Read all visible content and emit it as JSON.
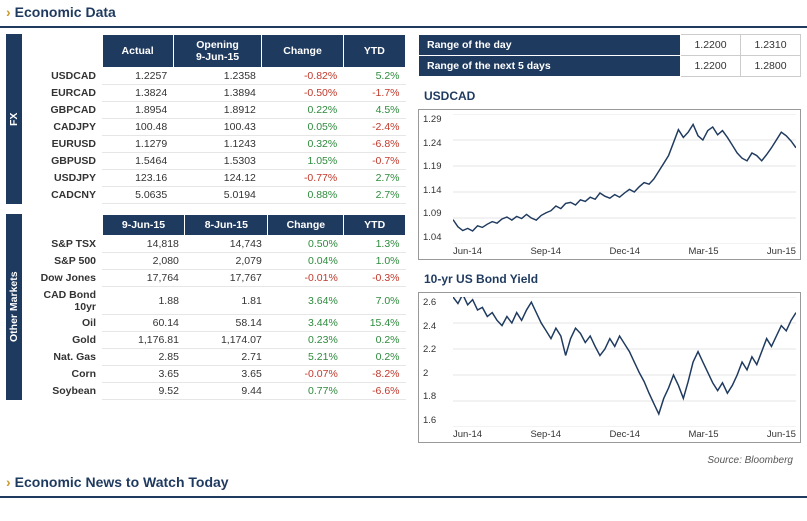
{
  "colors": {
    "navy": "#1f3a5f",
    "gold": "#c99a2e",
    "pos": "#2e8b3d",
    "neg": "#c0392b",
    "grid": "#cccccc",
    "line": "#1f3a5f"
  },
  "section1_title": "Economic Data",
  "section2_title": "Economic News to Watch Today",
  "fx": {
    "tab_label": "FX",
    "headers": [
      "Actual",
      "Opening\n9-Jun-15",
      "Change",
      "YTD"
    ],
    "rows": [
      {
        "label": "USDCAD",
        "actual": "1.2257",
        "open": "1.2358",
        "chg": "-0.82%",
        "chg_sign": -1,
        "ytd": "5.2%",
        "ytd_sign": 1
      },
      {
        "label": "EURCAD",
        "actual": "1.3824",
        "open": "1.3894",
        "chg": "-0.50%",
        "chg_sign": -1,
        "ytd": "-1.7%",
        "ytd_sign": -1
      },
      {
        "label": "GBPCAD",
        "actual": "1.8954",
        "open": "1.8912",
        "chg": "0.22%",
        "chg_sign": 1,
        "ytd": "4.5%",
        "ytd_sign": 1
      },
      {
        "label": "CADJPY",
        "actual": "100.48",
        "open": "100.43",
        "chg": "0.05%",
        "chg_sign": 1,
        "ytd": "-2.4%",
        "ytd_sign": -1
      },
      {
        "label": "EURUSD",
        "actual": "1.1279",
        "open": "1.1243",
        "chg": "0.32%",
        "chg_sign": 1,
        "ytd": "-6.8%",
        "ytd_sign": -1
      },
      {
        "label": "GBPUSD",
        "actual": "1.5464",
        "open": "1.5303",
        "chg": "1.05%",
        "chg_sign": 1,
        "ytd": "-0.7%",
        "ytd_sign": -1
      },
      {
        "label": "USDJPY",
        "actual": "123.16",
        "open": "124.12",
        "chg": "-0.77%",
        "chg_sign": -1,
        "ytd": "2.7%",
        "ytd_sign": 1
      },
      {
        "label": "CADCNY",
        "actual": "5.0635",
        "open": "5.0194",
        "chg": "0.88%",
        "chg_sign": 1,
        "ytd": "2.7%",
        "ytd_sign": 1
      }
    ]
  },
  "other": {
    "tab_label": "Other Markets",
    "headers": [
      "9-Jun-15",
      "8-Jun-15",
      "Change",
      "YTD"
    ],
    "rows": [
      {
        "label": "S&P TSX",
        "actual": "14,818",
        "open": "14,743",
        "chg": "0.50%",
        "chg_sign": 1,
        "ytd": "1.3%",
        "ytd_sign": 1
      },
      {
        "label": "S&P 500",
        "actual": "2,080",
        "open": "2,079",
        "chg": "0.04%",
        "chg_sign": 1,
        "ytd": "1.0%",
        "ytd_sign": 1
      },
      {
        "label": "Dow Jones",
        "actual": "17,764",
        "open": "17,767",
        "chg": "-0.01%",
        "chg_sign": -1,
        "ytd": "-0.3%",
        "ytd_sign": -1
      },
      {
        "label": "CAD Bond 10yr",
        "actual": "1.88",
        "open": "1.81",
        "chg": "3.64%",
        "chg_sign": 1,
        "ytd": "7.0%",
        "ytd_sign": 1
      },
      {
        "label": "Oil",
        "actual": "60.14",
        "open": "58.14",
        "chg": "3.44%",
        "chg_sign": 1,
        "ytd": "15.4%",
        "ytd_sign": 1
      },
      {
        "label": "Gold",
        "actual": "1,176.81",
        "open": "1,174.07",
        "chg": "0.23%",
        "chg_sign": 1,
        "ytd": "0.2%",
        "ytd_sign": 1
      },
      {
        "label": "Nat. Gas",
        "actual": "2.85",
        "open": "2.71",
        "chg": "5.21%",
        "chg_sign": 1,
        "ytd": "0.2%",
        "ytd_sign": 1
      },
      {
        "label": "Corn",
        "actual": "3.65",
        "open": "3.65",
        "chg": "-0.07%",
        "chg_sign": -1,
        "ytd": "-8.2%",
        "ytd_sign": -1
      },
      {
        "label": "Soybean",
        "actual": "9.52",
        "open": "9.44",
        "chg": "0.77%",
        "chg_sign": 1,
        "ytd": "-6.6%",
        "ytd_sign": -1
      }
    ]
  },
  "ranges": {
    "rows": [
      {
        "label": "Range of the day",
        "low": "1.2200",
        "high": "1.2310"
      },
      {
        "label": "Range of the next 5 days",
        "low": "1.2200",
        "high": "1.2800"
      }
    ]
  },
  "chart1": {
    "title": "USDCAD",
    "type": "line",
    "ylim": [
      1.04,
      1.29
    ],
    "yticks": [
      1.29,
      1.24,
      1.19,
      1.14,
      1.09,
      1.04
    ],
    "xticks": [
      "Jun-14",
      "Sep-14",
      "Dec-14",
      "Mar-15",
      "Jun-15"
    ],
    "line_color": "#1f3a5f",
    "line_width": 1.4,
    "background": "#ffffff",
    "grid_color": "#cccccc",
    "series": [
      1.087,
      1.073,
      1.066,
      1.07,
      1.065,
      1.075,
      1.072,
      1.078,
      1.083,
      1.08,
      1.088,
      1.092,
      1.086,
      1.093,
      1.089,
      1.097,
      1.09,
      1.086,
      1.095,
      1.1,
      1.104,
      1.113,
      1.108,
      1.118,
      1.12,
      1.115,
      1.125,
      1.122,
      1.13,
      1.126,
      1.138,
      1.132,
      1.128,
      1.135,
      1.13,
      1.138,
      1.145,
      1.14,
      1.15,
      1.158,
      1.155,
      1.165,
      1.18,
      1.195,
      1.21,
      1.235,
      1.26,
      1.245,
      1.255,
      1.27,
      1.248,
      1.24,
      1.258,
      1.265,
      1.25,
      1.258,
      1.245,
      1.23,
      1.215,
      1.205,
      1.2,
      1.215,
      1.21,
      1.2,
      1.212,
      1.225,
      1.24,
      1.255,
      1.248,
      1.238,
      1.225
    ]
  },
  "chart2": {
    "title": "10-yr US Bond Yield",
    "type": "line",
    "ylim": [
      1.6,
      2.6
    ],
    "yticks": [
      2.6,
      2.4,
      2.2,
      2.0,
      1.8,
      1.6
    ],
    "xticks": [
      "Jun-14",
      "Sep-14",
      "Dec-14",
      "Mar-15",
      "Jun-15"
    ],
    "line_color": "#1f3a5f",
    "line_width": 1.4,
    "background": "#ffffff",
    "grid_color": "#cccccc",
    "series": [
      2.6,
      2.55,
      2.62,
      2.54,
      2.58,
      2.5,
      2.52,
      2.45,
      2.48,
      2.42,
      2.38,
      2.45,
      2.4,
      2.48,
      2.42,
      2.5,
      2.56,
      2.48,
      2.4,
      2.34,
      2.28,
      2.36,
      2.3,
      2.15,
      2.28,
      2.36,
      2.32,
      2.25,
      2.3,
      2.22,
      2.15,
      2.2,
      2.28,
      2.22,
      2.3,
      2.24,
      2.18,
      2.1,
      2.02,
      1.95,
      1.86,
      1.78,
      1.7,
      1.82,
      1.9,
      2.0,
      1.92,
      1.82,
      1.95,
      2.1,
      2.18,
      2.1,
      2.02,
      1.94,
      1.88,
      1.94,
      1.86,
      1.92,
      2.0,
      2.1,
      2.04,
      2.14,
      2.08,
      2.18,
      2.28,
      2.22,
      2.3,
      2.38,
      2.34,
      2.42,
      2.48
    ]
  },
  "source_label": "Source: Bloomberg"
}
